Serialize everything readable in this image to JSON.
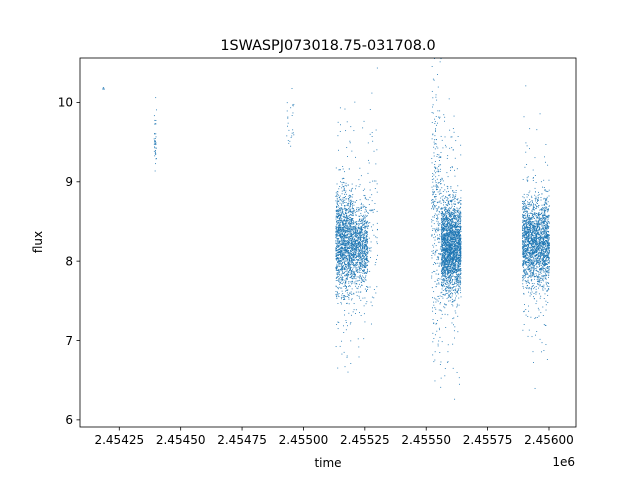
{
  "chart_data": {
    "type": "scatter",
    "title": "1SWASPJ073018.75-031708.0",
    "xlabel": "time",
    "ylabel": "flux",
    "x_offset_label": "1e6",
    "xlim": [
      2.45409,
      2.45611
    ],
    "ylim": [
      5.91,
      10.56
    ],
    "x_ticks": [
      2.45425,
      2.4545,
      2.45475,
      2.455,
      2.45525,
      2.4555,
      2.45575,
      2.456
    ],
    "x_tick_labels": [
      "2.45425",
      "2.45450",
      "2.45475",
      "2.45500",
      "2.45525",
      "2.45550",
      "2.45575",
      "2.45600"
    ],
    "y_ticks": [
      6,
      7,
      8,
      9,
      10
    ],
    "y_tick_labels": [
      "6",
      "7",
      "8",
      "9",
      "10"
    ],
    "grid": false,
    "legend": "none",
    "marker_color": "#1f77b4",
    "series": [
      {
        "clusters": [
          {
            "x_range": [
              2.45418,
              2.45419
            ],
            "y_center": 10.16,
            "y_spread": 0.03,
            "n": 6
          },
          {
            "x_range": [
              2.45439,
              2.4544
            ],
            "y_center": 9.5,
            "y_spread": 0.25,
            "n": 40
          },
          {
            "x_range": [
              2.45493,
              2.45496
            ],
            "y_center": 9.8,
            "y_spread": 0.3,
            "n": 25
          },
          {
            "x_range": [
              2.45513,
              2.4552
            ],
            "y_center": 8.25,
            "y_spread": 0.45,
            "n": 1500
          },
          {
            "x_range": [
              2.4552,
              2.45526
            ],
            "y_center": 8.2,
            "y_spread": 0.35,
            "n": 900
          },
          {
            "x_range": [
              2.45526,
              2.4553
            ],
            "y_center": 8.6,
            "y_spread": 0.9,
            "n": 80
          },
          {
            "x_range": [
              2.45552,
              2.45556
            ],
            "y_center": 8.6,
            "y_spread": 1.1,
            "n": 350
          },
          {
            "x_range": [
              2.45556,
              2.45564
            ],
            "y_center": 8.2,
            "y_spread": 0.4,
            "n": 2500
          },
          {
            "x_range": [
              2.45589,
              2.456
            ],
            "y_center": 8.25,
            "y_spread": 0.38,
            "n": 2200
          }
        ]
      }
    ]
  }
}
